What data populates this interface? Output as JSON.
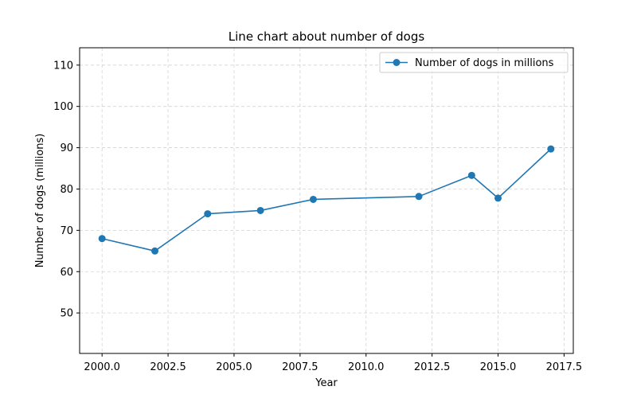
{
  "chart_data": {
    "type": "line",
    "title": "Line chart about number of dogs",
    "xlabel": "Year",
    "ylabel": "Number of dogs (millions)",
    "xlim": [
      1999.15,
      2017.85
    ],
    "ylim": [
      40.2,
      114.2
    ],
    "xticks": [
      2000.0,
      2002.5,
      2005.0,
      2007.5,
      2010.0,
      2012.5,
      2015.0,
      2017.5
    ],
    "xtick_labels": [
      "2000.0",
      "2002.5",
      "2005.0",
      "2007.5",
      "2010.0",
      "2012.5",
      "2015.0",
      "2017.5"
    ],
    "yticks": [
      50,
      60,
      70,
      80,
      90,
      100,
      110
    ],
    "ytick_labels": [
      "50",
      "60",
      "70",
      "80",
      "90",
      "100",
      "110"
    ],
    "grid": true,
    "legend_position": "top-right",
    "series": [
      {
        "name": "Number of dogs in millions",
        "color": "#1f77b4",
        "marker": "circle",
        "x": [
          2000,
          2002,
          2004,
          2006,
          2008,
          2012,
          2014,
          2015,
          2017
        ],
        "y": [
          68.0,
          65.0,
          74.0,
          74.8,
          77.5,
          78.2,
          83.3,
          77.8,
          89.7
        ]
      }
    ]
  }
}
